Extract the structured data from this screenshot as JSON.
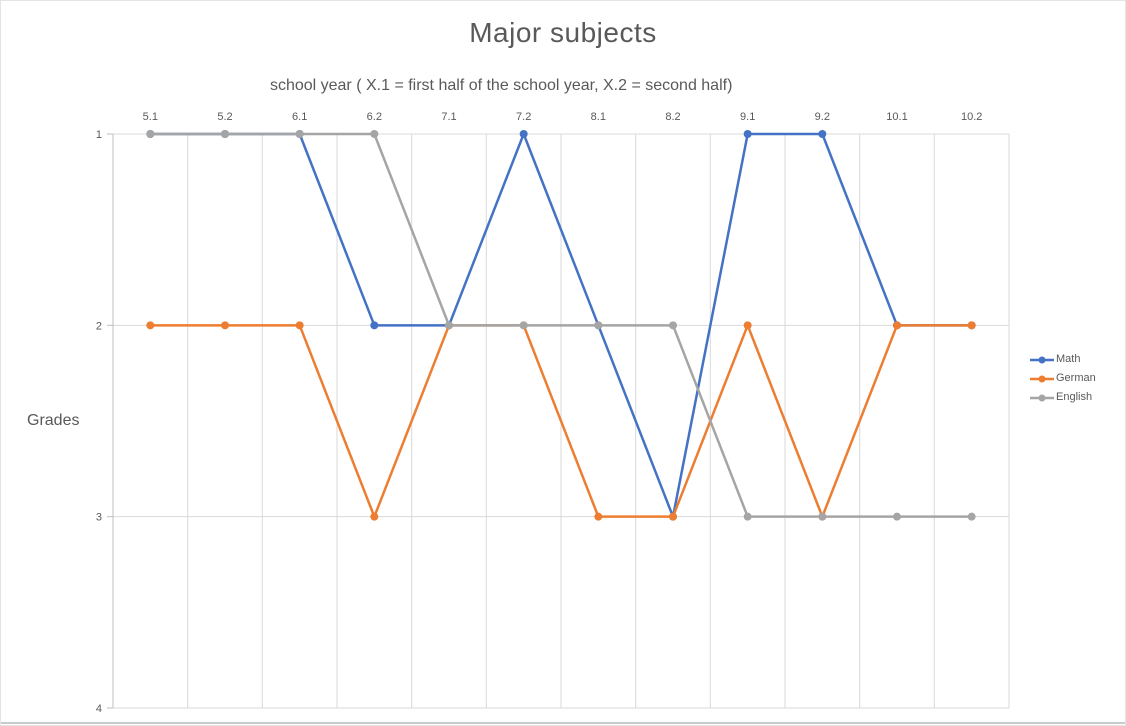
{
  "chart_data": {
    "type": "line",
    "title": "Major subjects",
    "x_axis_title": "school year ( X.1 = first half of the school year, X.2 = second half)",
    "y_axis_title": "Grades",
    "categories": [
      "5.1",
      "5.2",
      "6.1",
      "6.2",
      "7.1",
      "7.2",
      "8.1",
      "8.2",
      "9.1",
      "9.2",
      "10.1",
      "10.2"
    ],
    "y_ticks": [
      1,
      2,
      3,
      4
    ],
    "ylim": [
      1,
      4
    ],
    "y_axis_reversed": true,
    "grid": true,
    "legend_position": "right",
    "grid_color": "#D9D9D9",
    "axis_color": "#BFBFBF",
    "text_color": "#595959",
    "series": [
      {
        "name": "Math",
        "color": "#4472C4",
        "values": [
          1,
          1,
          1,
          2,
          2,
          1,
          2,
          3,
          1,
          1,
          2,
          2
        ]
      },
      {
        "name": "German",
        "color": "#ED7D31",
        "values": [
          2,
          2,
          2,
          3,
          2,
          2,
          3,
          3,
          2,
          3,
          2,
          2
        ]
      },
      {
        "name": "English",
        "color": "#A5A5A5",
        "values": [
          1,
          1,
          1,
          1,
          2,
          2,
          2,
          2,
          3,
          3,
          3,
          3
        ]
      }
    ]
  }
}
